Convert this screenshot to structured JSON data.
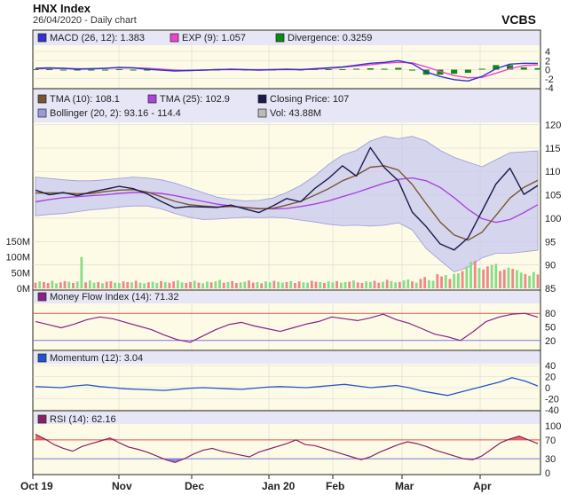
{
  "header": {
    "title": "HNX Index",
    "subtitle": "26/04/2020 - Daily chart",
    "brand": "VCBS"
  },
  "x_axis": {
    "labels": [
      "Oct 19",
      "Nov",
      "Dec",
      "Jan 20",
      "Feb",
      "Mar",
      "Apr"
    ]
  },
  "colors": {
    "panel_bg": "#fdfbe5",
    "legend_bg": "#e6e6f6",
    "grid": "#d8d8d8",
    "macd": "#3333cc",
    "exp": "#ee44cc",
    "divergence": "#118811",
    "tma10": "#7a5530",
    "tma25": "#aa44dd",
    "close": "#1a1a4a",
    "bollinger_fill": "#c8c8f0",
    "bollinger_line": "#9999dd",
    "vol_up": "#88dd88",
    "vol_down": "#ee8888",
    "mfi": "#882288",
    "momentum": "#2255cc",
    "rsi": "#882266",
    "overbought": "#e05050",
    "oversold": "#7777dd"
  },
  "chart_data": [
    {
      "type": "line",
      "panel": "macd",
      "legend": [
        {
          "label": "MACD (26, 12): 1.383",
          "color": "#3333cc"
        },
        {
          "label": "EXP (9): 1.057",
          "color": "#ee44cc"
        },
        {
          "label": "Divergence: 0.3259",
          "color": "#118811"
        }
      ],
      "ylim": [
        -4,
        4
      ],
      "yticks": [
        "4",
        "2",
        "0",
        "-2",
        "-4"
      ],
      "series": [
        {
          "name": "MACD",
          "values": [
            0.3,
            0.4,
            0.3,
            0.1,
            0.2,
            0.3,
            0.5,
            0.4,
            0.1,
            -0.1,
            -0.3,
            -0.2,
            -0.1,
            0.0,
            0.1,
            0.0,
            -0.1,
            0.0,
            0.1,
            0.0,
            0.2,
            0.4,
            0.6,
            1.0,
            1.4,
            1.6,
            2.0,
            1.3,
            -0.5,
            -1.5,
            -2.2,
            -2.5,
            -1.5,
            0.2,
            1.2,
            1.4,
            1.383
          ]
        },
        {
          "name": "EXP",
          "values": [
            0.2,
            0.3,
            0.3,
            0.2,
            0.2,
            0.3,
            0.4,
            0.4,
            0.3,
            0.1,
            -0.1,
            -0.2,
            -0.1,
            0.0,
            0.0,
            0.0,
            0.0,
            0.0,
            0.0,
            0.0,
            0.1,
            0.3,
            0.5,
            0.8,
            1.1,
            1.4,
            1.6,
            1.5,
            0.6,
            -0.4,
            -1.3,
            -1.8,
            -1.7,
            -0.8,
            0.2,
            0.9,
            1.057
          ]
        },
        {
          "name": "Divergence",
          "values": [
            0.1,
            0.1,
            0.0,
            -0.1,
            0.0,
            0.0,
            0.1,
            0.0,
            -0.2,
            -0.2,
            -0.2,
            0.0,
            0.0,
            0.0,
            0.1,
            0.0,
            -0.1,
            0.0,
            0.1,
            0.0,
            0.1,
            0.1,
            0.1,
            0.2,
            0.3,
            0.2,
            0.4,
            -0.2,
            -1.1,
            -1.1,
            -0.9,
            -0.7,
            0.2,
            1.0,
            1.0,
            0.5,
            0.3259
          ]
        }
      ]
    },
    {
      "type": "line",
      "panel": "price",
      "legend": [
        {
          "label": "TMA (10): 108.1",
          "color": "#7a5530"
        },
        {
          "label": "TMA (25): 102.9",
          "color": "#aa44dd"
        },
        {
          "label": "Closing Price: 107",
          "color": "#1a1a4a"
        },
        {
          "label": "Bollinger (20, 2): 93.16 - 114.4",
          "color": "#9999dd"
        },
        {
          "label": "Vol: 43.88M",
          "color": "#bbbbbb"
        }
      ],
      "ylim": [
        85,
        122
      ],
      "yticks": [
        "120",
        "115",
        "110",
        "105",
        "100",
        "95",
        "90",
        "85"
      ],
      "series": [
        {
          "name": "Closing Price",
          "values": [
            106,
            105,
            105.5,
            104.8,
            105.6,
            106.2,
            106.8,
            106.3,
            105.2,
            103.6,
            102.2,
            102.5,
            102.4,
            102.3,
            102.8,
            102.0,
            101.2,
            102.6,
            104.2,
            103.5,
            106.3,
            108.5,
            111.2,
            109.0,
            115.1,
            110.8,
            108.0,
            101.3,
            98.2,
            94.5,
            93.2,
            95.8,
            101.5,
            107.3,
            110.7,
            105.1,
            107.0
          ]
        },
        {
          "name": "TMA (10)",
          "values": [
            105.4,
            105.4,
            105.4,
            105.2,
            105.3,
            105.7,
            106.0,
            106.1,
            105.6,
            104.6,
            103.6,
            102.9,
            102.6,
            102.4,
            102.5,
            102.3,
            102.0,
            102.1,
            102.8,
            103.6,
            104.9,
            106.3,
            108.0,
            109.2,
            110.9,
            111.2,
            110.3,
            107.2,
            103.1,
            99.2,
            96.4,
            95.3,
            97.0,
            100.6,
            104.3,
            106.6,
            108.1
          ]
        },
        {
          "name": "TMA (25)",
          "values": [
            103.5,
            104.0,
            104.4,
            104.6,
            104.8,
            105.0,
            105.3,
            105.5,
            105.5,
            105.3,
            104.8,
            104.2,
            103.6,
            103.0,
            102.6,
            102.3,
            102.1,
            102.0,
            102.1,
            102.5,
            103.0,
            103.7,
            104.6,
            105.5,
            106.5,
            107.5,
            108.3,
            108.6,
            108.0,
            106.6,
            104.4,
            101.9,
            99.9,
            99.1,
            99.7,
            101.2,
            102.9
          ]
        },
        {
          "name": "Bollinger Upper",
          "values": [
            108.8,
            108.5,
            108.2,
            108.0,
            108.0,
            108.2,
            108.5,
            108.8,
            108.6,
            108.2,
            107.5,
            106.5,
            105.5,
            104.5,
            104.0,
            103.7,
            103.8,
            104.3,
            105.5,
            107.0,
            109.0,
            111.5,
            113.5,
            114.5,
            116.5,
            117.5,
            117.0,
            117.5,
            116.5,
            114.5,
            113.0,
            112.0,
            111.0,
            112.5,
            114.0,
            114.2,
            114.4
          ]
        },
        {
          "name": "Bollinger Lower",
          "values": [
            100.5,
            100.8,
            101.0,
            101.4,
            101.8,
            102.0,
            102.4,
            102.6,
            102.6,
            102.0,
            101.0,
            100.2,
            99.7,
            99.8,
            100.0,
            100.2,
            100.1,
            100.2,
            100.0,
            99.6,
            99.2,
            98.7,
            98.4,
            98.5,
            98.3,
            98.5,
            99.0,
            97.5,
            93.5,
            91.0,
            88.5,
            89.5,
            91.5,
            92.5,
            92.5,
            92.8,
            93.16
          ]
        }
      ]
    },
    {
      "type": "bar",
      "panel": "volume",
      "ylim": [
        0,
        150
      ],
      "yticks": [
        "150M",
        "100M",
        "50M",
        "0M"
      ],
      "series": [
        {
          "name": "Vol",
          "values": [
            18,
            22,
            20,
            17,
            24,
            16,
            19,
            23,
            21,
            17,
            22,
            100,
            19,
            25,
            18,
            20,
            16,
            21,
            23,
            18,
            17,
            22,
            20,
            19,
            24,
            18,
            16,
            19,
            21,
            17,
            23,
            20,
            18,
            22,
            25,
            19,
            17,
            20,
            24,
            18,
            16,
            21,
            19,
            22,
            27,
            18,
            20,
            23,
            17,
            19,
            21,
            25,
            18,
            20,
            16,
            22,
            19,
            24,
            21,
            18,
            20,
            23,
            17,
            22,
            19,
            18,
            24,
            21,
            20,
            17,
            22,
            19,
            23,
            18,
            20,
            21,
            25,
            19,
            17,
            22,
            20,
            24,
            18,
            21,
            27,
            23,
            19,
            20,
            25,
            28,
            22,
            18,
            30,
            36,
            26,
            24,
            45,
            38,
            42,
            30,
            46,
            48,
            55,
            70,
            85,
            88,
            65,
            60,
            70,
            75,
            78,
            55,
            60,
            66,
            62,
            58,
            50,
            45,
            40,
            52,
            43.88
          ]
        }
      ]
    },
    {
      "type": "line",
      "panel": "mfi",
      "legend": [
        {
          "label": "Money Flow Index (14): 71.32",
          "color": "#882288"
        }
      ],
      "ylim": [
        0,
        100
      ],
      "yticks": [
        "80",
        "50",
        "20"
      ],
      "thresholds": [
        80,
        20
      ],
      "series": [
        {
          "name": "MFI",
          "values": [
            62,
            55,
            48,
            56,
            66,
            72,
            68,
            60,
            52,
            44,
            32,
            22,
            16,
            30,
            44,
            55,
            60,
            52,
            46,
            40,
            48,
            56,
            62,
            72,
            68,
            64,
            70,
            78,
            66,
            58,
            46,
            34,
            28,
            20,
            40,
            62,
            72,
            78,
            80,
            71.32
          ]
        }
      ]
    },
    {
      "type": "line",
      "panel": "momentum",
      "legend": [
        {
          "label": "Momentum (12): 3.04",
          "color": "#2255cc"
        }
      ],
      "ylim": [
        -40,
        40
      ],
      "yticks": [
        "40",
        "20",
        "0",
        "-20",
        "-40"
      ],
      "series": [
        {
          "name": "Momentum",
          "values": [
            2,
            1,
            0,
            3,
            5,
            2,
            0,
            -2,
            -3,
            -4,
            -5,
            -3,
            -1,
            0,
            -1,
            -2,
            -3,
            -1,
            1,
            2,
            1,
            0,
            2,
            4,
            6,
            3,
            0,
            2,
            4,
            0,
            -6,
            -10,
            -14,
            -8,
            -2,
            4,
            10,
            18,
            12,
            3.04
          ]
        }
      ]
    },
    {
      "type": "line",
      "panel": "rsi",
      "legend": [
        {
          "label": "RSI (14): 62.16",
          "color": "#882266"
        }
      ],
      "ylim": [
        0,
        100
      ],
      "yticks": [
        "100",
        "70",
        "30",
        "0"
      ],
      "thresholds": [
        70,
        30
      ],
      "series": [
        {
          "name": "RSI",
          "values": [
            82,
            72,
            60,
            52,
            46,
            56,
            62,
            68,
            74,
            64,
            55,
            50,
            44,
            36,
            28,
            22,
            30,
            40,
            48,
            52,
            46,
            42,
            38,
            34,
            44,
            50,
            56,
            62,
            70,
            60,
            58,
            52,
            46,
            40,
            34,
            28,
            34,
            44,
            52,
            60,
            66,
            62,
            56,
            48,
            42,
            36,
            30,
            28,
            36,
            50,
            64,
            72,
            78,
            70,
            62.16
          ]
        }
      ]
    }
  ]
}
